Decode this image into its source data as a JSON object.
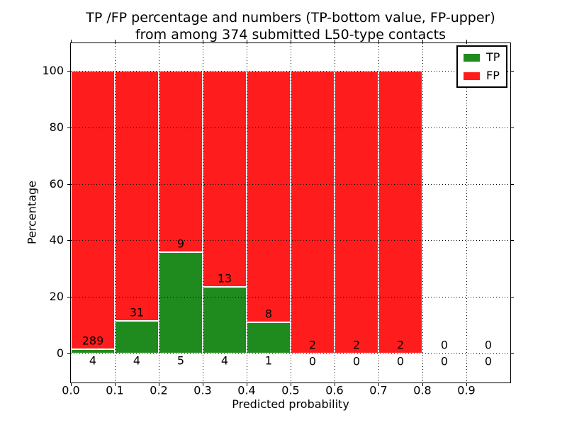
{
  "chart_data": {
    "type": "bar",
    "stacked": true,
    "title": "TP /FP percentage and numbers (TP-bottom value, FP-upper)",
    "subtitle": "from among 374 submitted L50-type contacts",
    "xlabel": "Predicted probability",
    "ylabel": "Percentage",
    "total_contacts": 374,
    "xlim": [
      0.0,
      1.0
    ],
    "ylim": [
      -10.3,
      109.8
    ],
    "grid": "dotted black, drawn over bars",
    "legend_position": "upper right",
    "colors": {
      "tp": "#1f8b1f",
      "fp": "#ff1c1c",
      "bar_edge": "#ffffff",
      "grid": "#000000",
      "text": "#000000"
    },
    "legend": [
      {
        "label": "TP",
        "color_key": "tp"
      },
      {
        "label": "FP",
        "color_key": "fp"
      }
    ],
    "yticks": [
      0,
      20,
      40,
      60,
      80,
      100
    ],
    "xticks": [
      "0.0",
      "0.1",
      "0.2",
      "0.3",
      "0.4",
      "0.5",
      "0.6",
      "0.7",
      "0.8",
      "0.9"
    ],
    "bins": [
      {
        "range": [
          0.0,
          0.1
        ],
        "tp_count": 4,
        "fp_count": 289,
        "tp_pct": 1.37,
        "fp_pct": 98.63
      },
      {
        "range": [
          0.1,
          0.2
        ],
        "tp_count": 4,
        "fp_count": 31,
        "tp_pct": 11.43,
        "fp_pct": 88.57
      },
      {
        "range": [
          0.2,
          0.3
        ],
        "tp_count": 5,
        "fp_count": 9,
        "tp_pct": 35.71,
        "fp_pct": 64.29
      },
      {
        "range": [
          0.3,
          0.4
        ],
        "tp_count": 4,
        "fp_count": 13,
        "tp_pct": 23.53,
        "fp_pct": 76.47
      },
      {
        "range": [
          0.4,
          0.5
        ],
        "tp_count": 1,
        "fp_count": 8,
        "tp_pct": 11.11,
        "fp_pct": 88.89
      },
      {
        "range": [
          0.5,
          0.6
        ],
        "tp_count": 0,
        "fp_count": 2,
        "tp_pct": 0,
        "fp_pct": 100
      },
      {
        "range": [
          0.6,
          0.7
        ],
        "tp_count": 0,
        "fp_count": 2,
        "tp_pct": 0,
        "fp_pct": 100
      },
      {
        "range": [
          0.7,
          0.8
        ],
        "tp_count": 0,
        "fp_count": 2,
        "tp_pct": 0,
        "fp_pct": 100
      },
      {
        "range": [
          0.8,
          0.9
        ],
        "tp_count": 0,
        "fp_count": 0,
        "tp_pct": 0,
        "fp_pct": 0
      },
      {
        "range": [
          0.9,
          1.0
        ],
        "tp_count": 0,
        "fp_count": 0,
        "tp_pct": 0,
        "fp_pct": 0
      }
    ]
  }
}
